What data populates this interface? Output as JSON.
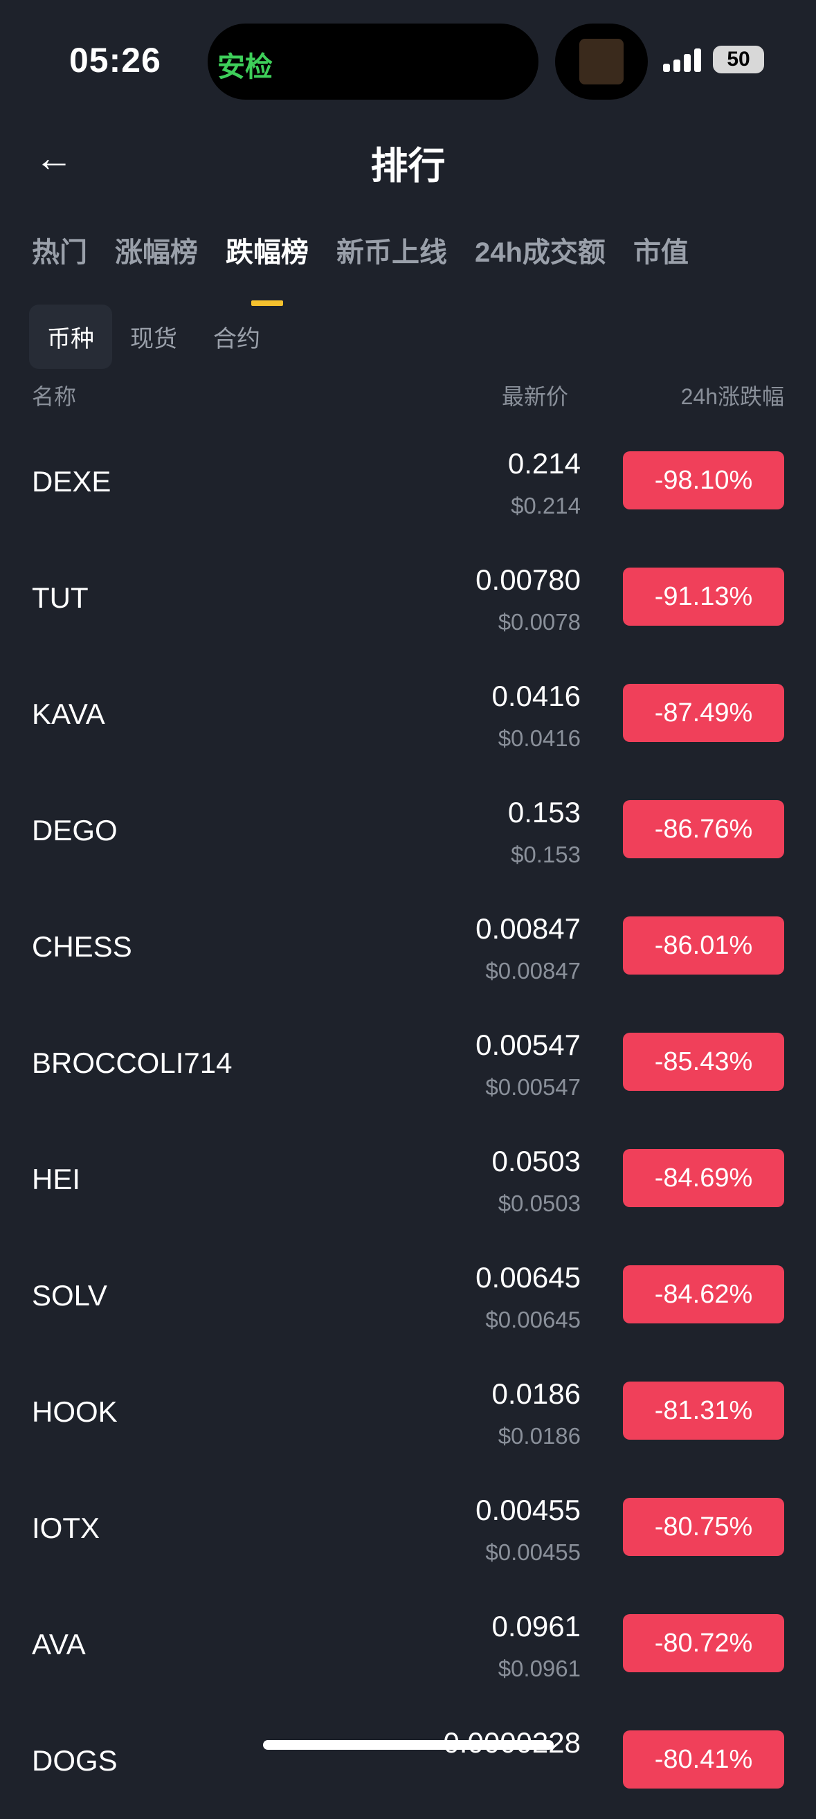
{
  "status_bar": {
    "time": "05:26",
    "island_text": "安检",
    "battery": "50"
  },
  "header": {
    "title": "排行",
    "back_icon": "arrow-left-icon"
  },
  "tabs": [
    "热门",
    "涨幅榜",
    "跌幅榜",
    "新币上线",
    "24h成交额",
    "市值"
  ],
  "active_tab": 2,
  "subtabs": [
    "币种",
    "现货",
    "合约"
  ],
  "active_subtab": 0,
  "columns": {
    "name": "名称",
    "price": "最新价",
    "change": "24h涨跌幅"
  },
  "colors": {
    "background": "#1e222b",
    "negative": "#f0405a",
    "accent": "#f5c12e"
  },
  "rows": [
    {
      "name": "DEXE",
      "price": "0.214",
      "usd": "$0.214",
      "change": "-98.10%"
    },
    {
      "name": "TUT",
      "price": "0.00780",
      "usd": "$0.0078",
      "change": "-91.13%"
    },
    {
      "name": "KAVA",
      "price": "0.0416",
      "usd": "$0.0416",
      "change": "-87.49%"
    },
    {
      "name": "DEGO",
      "price": "0.153",
      "usd": "$0.153",
      "change": "-86.76%"
    },
    {
      "name": "CHESS",
      "price": "0.00847",
      "usd": "$0.00847",
      "change": "-86.01%"
    },
    {
      "name": "BROCCOLI714",
      "price": "0.00547",
      "usd": "$0.00547",
      "change": "-85.43%"
    },
    {
      "name": "HEI",
      "price": "0.0503",
      "usd": "$0.0503",
      "change": "-84.69%"
    },
    {
      "name": "SOLV",
      "price": "0.00645",
      "usd": "$0.00645",
      "change": "-84.62%"
    },
    {
      "name": "HOOK",
      "price": "0.0186",
      "usd": "$0.0186",
      "change": "-81.31%"
    },
    {
      "name": "IOTX",
      "price": "0.00455",
      "usd": "$0.00455",
      "change": "-80.75%"
    },
    {
      "name": "AVA",
      "price": "0.0961",
      "usd": "$0.0961",
      "change": "-80.72%"
    },
    {
      "name": "DOGS",
      "price": "0.0000228",
      "usd": "",
      "change": "-80.41%"
    }
  ]
}
